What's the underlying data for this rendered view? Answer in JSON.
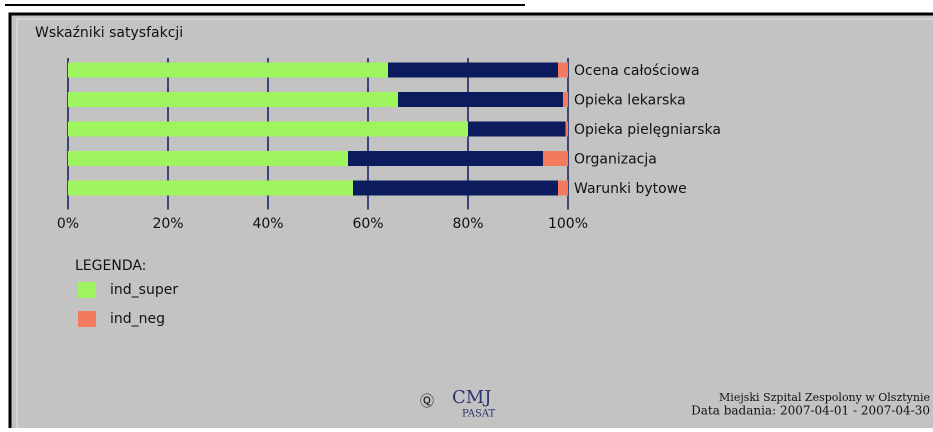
{
  "chart_data": {
    "type": "stacked-barh",
    "title": "Wskaźniki satysfakcji",
    "categories": [
      "Ocena całościowa",
      "Opieka lekarska",
      "Opieka pielęgniarska",
      "Organizacja",
      "Warunki bytowe"
    ],
    "series": [
      {
        "name": "ind_super",
        "color": "#9ef55e",
        "values": [
          64,
          66,
          80,
          56,
          57
        ]
      },
      {
        "color": "#0c1a5e",
        "values": [
          34,
          33,
          19.5,
          39,
          41
        ]
      },
      {
        "name": "ind_neg",
        "color": "#f47a5e",
        "values": [
          2,
          1,
          0.5,
          5,
          2
        ]
      }
    ],
    "xlim": [
      0,
      100
    ],
    "xticks": [
      {
        "value": 0,
        "label": "0%"
      },
      {
        "value": 20,
        "label": "20%"
      },
      {
        "value": 40,
        "label": "40%"
      },
      {
        "value": 60,
        "label": "60%"
      },
      {
        "value": 80,
        "label": "80%"
      },
      {
        "value": 100,
        "label": "100%"
      }
    ],
    "grid": true,
    "legend_title": "LEGENDA:",
    "logo": "CMJ",
    "logo_sub": "PASAT",
    "footer": [
      "Miejski Szpital Zespolony w Olsztynie",
      "Data badania: 2007-04-01 - 2007-04-30"
    ]
  }
}
